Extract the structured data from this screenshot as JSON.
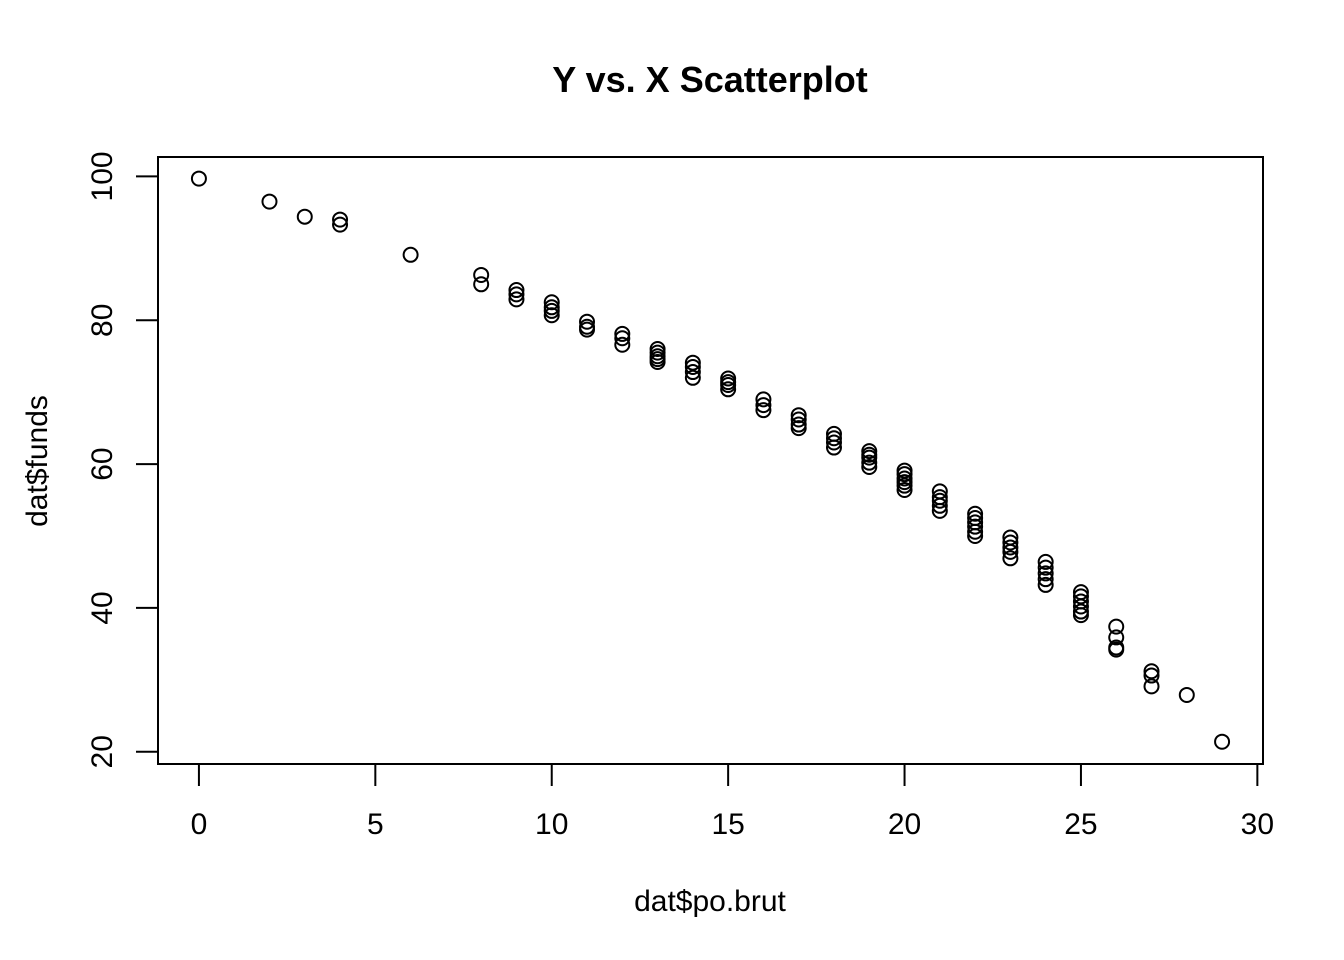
{
  "chart_data": {
    "type": "scatter",
    "title": "Y vs. X Scatterplot",
    "xlabel": "dat$po.brut",
    "ylabel": "dat$funds",
    "xlim": [
      -1.16,
      30.16
    ],
    "ylim": [
      18.3,
      102.7
    ],
    "x_ticks": [
      0,
      5,
      10,
      15,
      20,
      25,
      30
    ],
    "y_ticks": [
      20,
      40,
      60,
      80,
      100
    ],
    "x_tick_labels": [
      "0",
      "5",
      "10",
      "15",
      "20",
      "25",
      "30"
    ],
    "y_tick_labels": [
      "20",
      "40",
      "60",
      "80",
      "100"
    ],
    "grid": false,
    "marker": "open-circle",
    "colors": {
      "points": "#000000",
      "frame": "#000000",
      "background": "#ffffff"
    },
    "points": [
      [
        0,
        99.7
      ],
      [
        2,
        96.5
      ],
      [
        3,
        94.4
      ],
      [
        4,
        94.0
      ],
      [
        4,
        93.3
      ],
      [
        6,
        89.1
      ],
      [
        8,
        86.3
      ],
      [
        8,
        85.0
      ],
      [
        9,
        84.2
      ],
      [
        9,
        83.6
      ],
      [
        9,
        82.9
      ],
      [
        10,
        82.5
      ],
      [
        10,
        81.8
      ],
      [
        10,
        81.3
      ],
      [
        10,
        80.7
      ],
      [
        11,
        79.8
      ],
      [
        11,
        79.1
      ],
      [
        11,
        78.7
      ],
      [
        12,
        78.1
      ],
      [
        12,
        77.5
      ],
      [
        12,
        76.6
      ],
      [
        13,
        76.0
      ],
      [
        13,
        75.5
      ],
      [
        13,
        75.0
      ],
      [
        13,
        74.6
      ],
      [
        13,
        74.2
      ],
      [
        14,
        74.1
      ],
      [
        14,
        73.5
      ],
      [
        14,
        72.8
      ],
      [
        14,
        72.0
      ],
      [
        15,
        71.9
      ],
      [
        15,
        71.4
      ],
      [
        15,
        71.0
      ],
      [
        15,
        70.4
      ],
      [
        16,
        69.0
      ],
      [
        16,
        68.2
      ],
      [
        16,
        67.5
      ],
      [
        17,
        66.8
      ],
      [
        17,
        66.2
      ],
      [
        17,
        65.5
      ],
      [
        17,
        65.0
      ],
      [
        18,
        64.2
      ],
      [
        18,
        63.6
      ],
      [
        18,
        63.0
      ],
      [
        18,
        62.3
      ],
      [
        19,
        61.8
      ],
      [
        19,
        61.3
      ],
      [
        19,
        60.9
      ],
      [
        19,
        60.2
      ],
      [
        19,
        59.6
      ],
      [
        20,
        59.1
      ],
      [
        20,
        58.6
      ],
      [
        20,
        58.0
      ],
      [
        20,
        57.5
      ],
      [
        20,
        57.0
      ],
      [
        20,
        56.4
      ],
      [
        21,
        56.2
      ],
      [
        21,
        55.4
      ],
      [
        21,
        54.9
      ],
      [
        21,
        54.2
      ],
      [
        21,
        53.5
      ],
      [
        22,
        53.1
      ],
      [
        22,
        52.5
      ],
      [
        22,
        51.9
      ],
      [
        22,
        51.3
      ],
      [
        22,
        50.6
      ],
      [
        22,
        50.0
      ],
      [
        23,
        49.8
      ],
      [
        23,
        49.1
      ],
      [
        23,
        48.4
      ],
      [
        23,
        47.8
      ],
      [
        23,
        46.9
      ],
      [
        24,
        46.4
      ],
      [
        24,
        45.6
      ],
      [
        24,
        44.8
      ],
      [
        24,
        44.0
      ],
      [
        24,
        43.2
      ],
      [
        25,
        42.2
      ],
      [
        25,
        41.6
      ],
      [
        25,
        40.9
      ],
      [
        25,
        40.2
      ],
      [
        25,
        39.5
      ],
      [
        25,
        39.0
      ],
      [
        26,
        37.4
      ],
      [
        26,
        35.9
      ],
      [
        26,
        34.5
      ],
      [
        26,
        34.2
      ],
      [
        27,
        31.2
      ],
      [
        27,
        30.6
      ],
      [
        27,
        29.1
      ],
      [
        28,
        27.9
      ],
      [
        29,
        21.4
      ]
    ]
  }
}
